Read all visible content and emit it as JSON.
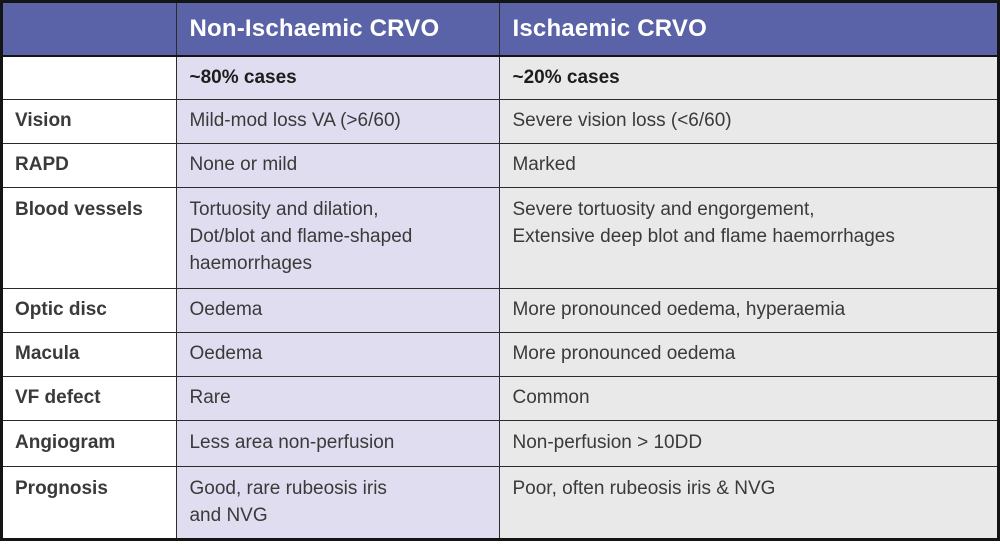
{
  "theme": {
    "header_bg": "#5a62a8",
    "header_text": "#ffffff",
    "col2_bg": "#dfddef",
    "col3_bg": "#e9e9e9",
    "label_bg": "#ffffff",
    "outer_border": "#141414",
    "inner_border": "#2b2b2b",
    "label_text": "#1d1d1d",
    "body_text": "#3a3a3a"
  },
  "table": {
    "columns": [
      "",
      "Non-Ischaemic CRVO",
      "Ischaemic CRVO"
    ],
    "rows": [
      {
        "label": "",
        "cells": [
          "~80% cases",
          "~20% cases"
        ]
      },
      {
        "label": "Vision",
        "cells": [
          "Mild-mod loss VA (>6/60)",
          "Severe vision loss (<6/60)"
        ]
      },
      {
        "label": "RAPD",
        "cells": [
          "None or mild",
          "Marked"
        ]
      },
      {
        "label": "Blood vessels",
        "cells": [
          "Tortuosity and dilation,\nDot/blot and flame-shaped\nhaemorrhages",
          "Severe tortuosity and engorgement,\nExtensive deep blot and flame haemorrhages"
        ]
      },
      {
        "label": "Optic disc",
        "cells": [
          "Oedema",
          "More pronounced oedema, hyperaemia"
        ]
      },
      {
        "label": "Macula",
        "cells": [
          "Oedema",
          "More pronounced oedema"
        ]
      },
      {
        "label": "VF defect",
        "cells": [
          "Rare",
          "Common"
        ]
      },
      {
        "label": "Angiogram",
        "cells": [
          "Less area non-perfusion",
          "Non-perfusion > 10DD"
        ]
      },
      {
        "label": "Prognosis",
        "cells": [
          "Good, rare rubeosis iris\nand NVG",
          "Poor, often rubeosis iris & NVG"
        ]
      }
    ]
  }
}
